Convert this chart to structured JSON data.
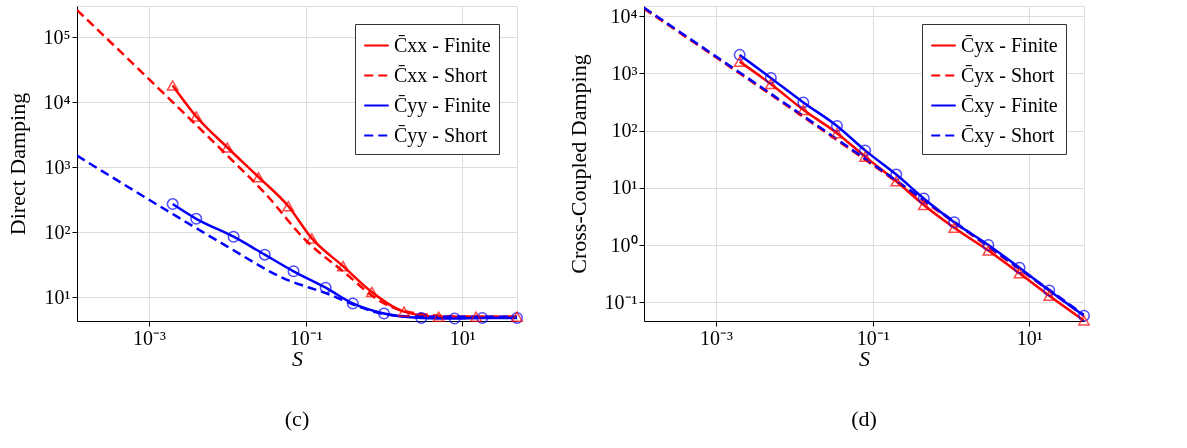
{
  "chart_data": [
    {
      "type": "line",
      "xlabel": "S",
      "ylabel": "Direct Damping",
      "annotations": [
        "(c)"
      ],
      "log": "xy",
      "grid": true,
      "legend": "top right",
      "xlim": [
        0.00012,
        50
      ],
      "ylim": [
        4.3,
        300000
      ],
      "xticks": [
        {
          "value": 0.001,
          "label": "10⁻³"
        },
        {
          "value": 0.1,
          "label": "10⁻¹"
        },
        {
          "value": 10,
          "label": "10¹"
        }
      ],
      "yticks": [
        {
          "value": 10,
          "label": "10¹"
        },
        {
          "value": 100,
          "label": "10²"
        },
        {
          "value": 1000,
          "label": "10³"
        },
        {
          "value": 10000,
          "label": "10⁴"
        },
        {
          "value": 100000,
          "label": "10⁵"
        }
      ],
      "series": [
        {
          "name": "C̄xx - Finite",
          "color": "#ff0000",
          "line_style": "solid",
          "marker": "triangle",
          "x": [
            0.002,
            0.004,
            0.01,
            0.025,
            0.06,
            0.12,
            0.3,
            0.7,
            1.8,
            5,
            15,
            50
          ],
          "values": [
            18000,
            6000,
            2000,
            700,
            250,
            80,
            30,
            12,
            6,
            5,
            5,
            5
          ]
        },
        {
          "name": "C̄xx - Short",
          "color": "#ff0000",
          "line_style": "dashed",
          "marker": "none",
          "x": [
            0.00012,
            0.002,
            0.01,
            0.03,
            0.1,
            0.3,
            1,
            3,
            10,
            50
          ],
          "values": [
            260000,
            10000,
            1500,
            400,
            75,
            25,
            8,
            5.5,
            5,
            5
          ]
        },
        {
          "name": "C̄yy - Finite",
          "color": "#0000ff",
          "line_style": "solid",
          "marker": "circle",
          "x": [
            0.002,
            0.004,
            0.012,
            0.03,
            0.07,
            0.18,
            0.4,
            1,
            3,
            8,
            18,
            50
          ],
          "values": [
            270,
            160,
            85,
            45,
            25,
            14,
            8,
            5.6,
            4.8,
            4.7,
            4.8,
            4.8
          ]
        },
        {
          "name": "C̄yy - Short",
          "color": "#0000ff",
          "line_style": "dashed",
          "marker": "none",
          "x": [
            0.00012,
            0.002,
            0.01,
            0.05,
            0.2,
            0.5,
            1,
            3,
            50
          ],
          "values": [
            1500,
            190,
            60,
            20,
            11,
            7,
            5.5,
            5,
            5
          ]
        }
      ]
    },
    {
      "type": "line",
      "xlabel": "S",
      "ylabel": "Cross-Coupled Damping",
      "annotations": [
        "(d)"
      ],
      "log": "xy",
      "grid": true,
      "legend": "top right",
      "xlim": [
        0.00012,
        50
      ],
      "ylim": [
        0.047,
        15000
      ],
      "xticks": [
        {
          "value": 0.001,
          "label": "10⁻³"
        },
        {
          "value": 0.1,
          "label": "10⁻¹"
        },
        {
          "value": 10,
          "label": "10¹"
        }
      ],
      "yticks": [
        {
          "value": 0.1,
          "label": "10⁻¹"
        },
        {
          "value": 1,
          "label": "10⁰"
        },
        {
          "value": 10,
          "label": "10¹"
        },
        {
          "value": 100,
          "label": "10²"
        },
        {
          "value": 1000,
          "label": "10³"
        },
        {
          "value": 10000,
          "label": "10⁴"
        }
      ],
      "series": [
        {
          "name": "C̄yx - Finite",
          "color": "#ff0000",
          "line_style": "solid",
          "marker": "triangle",
          "x": [
            0.002,
            0.005,
            0.013,
            0.035,
            0.08,
            0.2,
            0.45,
            1.1,
            3,
            7.5,
            18,
            50
          ],
          "values": [
            1600,
            650,
            230,
            90,
            35,
            13,
            5,
            2,
            0.8,
            0.32,
            0.13,
            0.048
          ]
        },
        {
          "name": "C̄yx - Short",
          "color": "#ff0000",
          "line_style": "dashed",
          "marker": "none",
          "x": [
            0.00012,
            0.1,
            50
          ],
          "values": [
            13500,
            25,
            0.058
          ]
        },
        {
          "name": "C̄xy - Finite",
          "color": "#0000ff",
          "line_style": "solid",
          "marker": "circle",
          "x": [
            0.002,
            0.005,
            0.013,
            0.035,
            0.08,
            0.2,
            0.45,
            1.1,
            3,
            7.5,
            18,
            50
          ],
          "values": [
            2100,
            830,
            310,
            120,
            45,
            17,
            6.5,
            2.5,
            1.0,
            0.4,
            0.16,
            0.058
          ]
        },
        {
          "name": "C̄xy - Short",
          "color": "#0000ff",
          "line_style": "dashed",
          "marker": "none",
          "x": [
            0.00012,
            0.1,
            50
          ],
          "values": [
            14000,
            26,
            0.06
          ]
        }
      ]
    }
  ]
}
